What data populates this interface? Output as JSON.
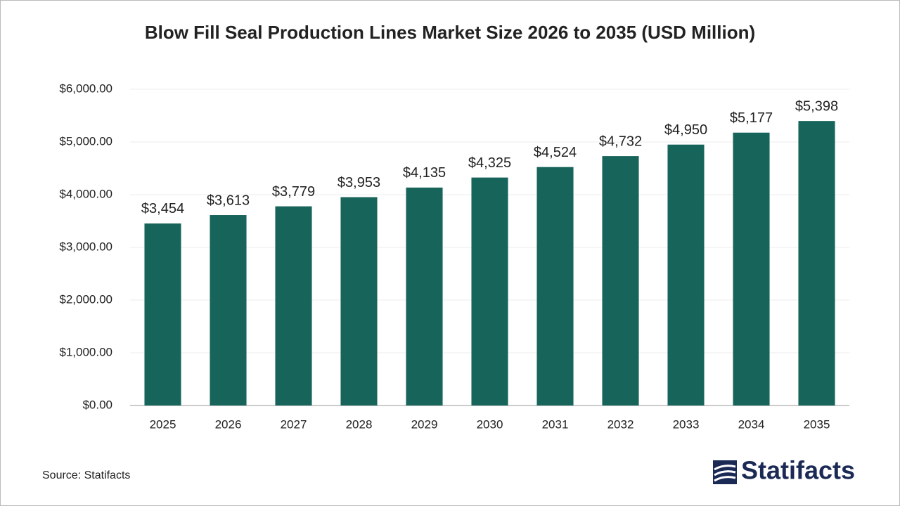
{
  "chart_data": {
    "type": "bar",
    "title": "Blow Fill Seal Production Lines Market Size 2026 to 2035 (USD Million)",
    "categories": [
      "2025",
      "2026",
      "2027",
      "2028",
      "2029",
      "2030",
      "2031",
      "2032",
      "2033",
      "2034",
      "2035"
    ],
    "values": [
      3454,
      3613,
      3779,
      3953,
      4135,
      4325,
      4524,
      4732,
      4950,
      5177,
      5398
    ],
    "value_labels": [
      "$3,454",
      "$3,613",
      "$3,779",
      "$3,953",
      "$4,135",
      "$4,325",
      "$4,524",
      "$4,732",
      "$4,950",
      "$5,177",
      "$5,398"
    ],
    "color": "#17645a",
    "ylim": [
      0,
      6000
    ],
    "yticks": [
      {
        "value": 0,
        "label": "$0.00"
      },
      {
        "value": 1000,
        "label": "$1,000.00"
      },
      {
        "value": 2000,
        "label": "$2,000.00"
      },
      {
        "value": 3000,
        "label": "$3,000.00"
      },
      {
        "value": 4000,
        "label": "$4,000.00"
      },
      {
        "value": 5000,
        "label": "$5,000.00"
      },
      {
        "value": 6000,
        "label": "$6,000.00"
      }
    ],
    "grid": true,
    "source": "Source: Statifacts",
    "logo": "Statifacts"
  }
}
